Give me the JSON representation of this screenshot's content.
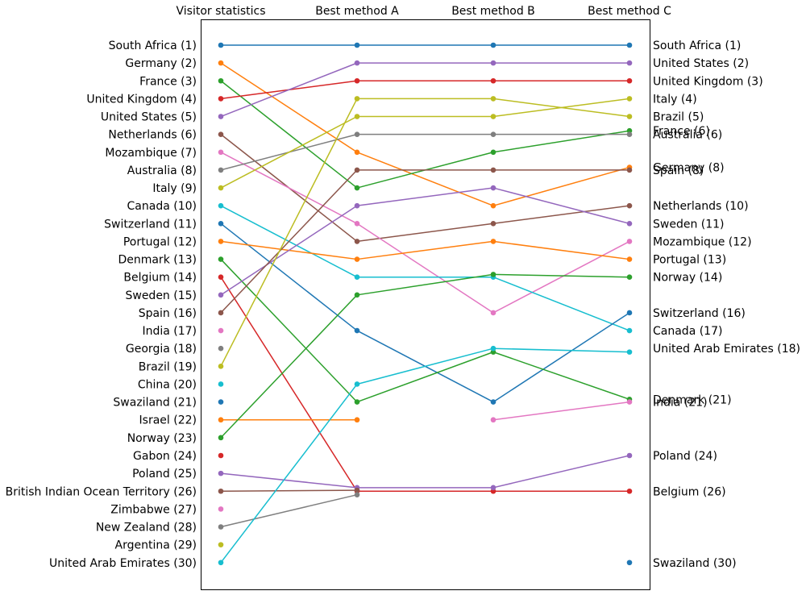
{
  "chart_data": {
    "type": "line",
    "categories": [
      "Visitor statistics",
      "Best method A",
      "Best method B",
      "Best method C"
    ],
    "ylim": [
      0.5,
      30.5
    ],
    "left_labels": [
      "South Africa (1)",
      "Germany (2)",
      "France (3)",
      "United Kingdom (4)",
      "United States (5)",
      "Netherlands (6)",
      "Mozambique (7)",
      "Australia (8)",
      "Italy (9)",
      "Canada (10)",
      "Switzerland (11)",
      "Portugal (12)",
      "Denmark (13)",
      "Belgium (14)",
      "Sweden (15)",
      "Spain (16)",
      "India (17)",
      "Georgia (18)",
      "Brazil (19)",
      "China (20)",
      "Swaziland (21)",
      "Israel (22)",
      "Norway (23)",
      "Gabon (24)",
      "Poland (25)",
      "British Indian Ocean Territory (26)",
      "Zimbabwe (27)",
      "New Zealand (28)",
      "Argentina (29)",
      "United Arab Emirates (30)"
    ],
    "right_labels": [
      {
        "text": "South Africa (1)",
        "y": 1
      },
      {
        "text": "United States (2)",
        "y": 2
      },
      {
        "text": "United Kingdom (3)",
        "y": 3
      },
      {
        "text": "Italy (4)",
        "y": 4
      },
      {
        "text": "Brazil (5)",
        "y": 5
      },
      {
        "text": "France (6)",
        "y": 5.8
      },
      {
        "text": "Australia (6)",
        "y": 6
      },
      {
        "text": "Germany (8)",
        "y": 7.85
      },
      {
        "text": "Spain (8)",
        "y": 8
      },
      {
        "text": "Netherlands (10)",
        "y": 10
      },
      {
        "text": "Sweden (11)",
        "y": 11
      },
      {
        "text": "Mozambique (12)",
        "y": 12
      },
      {
        "text": "Portugal (13)",
        "y": 13
      },
      {
        "text": "Norway (14)",
        "y": 14
      },
      {
        "text": "Switzerland (16)",
        "y": 16
      },
      {
        "text": "Canada (17)",
        "y": 17
      },
      {
        "text": "United Arab Emirates (18)",
        "y": 18
      },
      {
        "text": "Denmark (21)",
        "y": 20.85
      },
      {
        "text": "India (21)",
        "y": 21
      },
      {
        "text": "Poland (24)",
        "y": 24
      },
      {
        "text": "Belgium (26)",
        "y": 26
      },
      {
        "text": "Swaziland (30)",
        "y": 30
      }
    ],
    "series": [
      {
        "values": [
          1,
          1,
          1,
          1
        ],
        "color": "#1f77b4"
      },
      {
        "values": [
          2,
          7,
          10,
          7.85
        ],
        "color": "#ff7f0e"
      },
      {
        "values": [
          3,
          9,
          7,
          5.8
        ],
        "color": "#2ca02c"
      },
      {
        "values": [
          4,
          3,
          3,
          3
        ],
        "color": "#d62728"
      },
      {
        "values": [
          5,
          2,
          2,
          2
        ],
        "color": "#9467bd"
      },
      {
        "values": [
          6,
          12,
          11,
          10
        ],
        "color": "#8c564b"
      },
      {
        "values": [
          7,
          11,
          16,
          12
        ],
        "color": "#e377c2"
      },
      {
        "values": [
          8,
          6,
          6,
          6
        ],
        "color": "#7f7f7f"
      },
      {
        "values": [
          9,
          5,
          5,
          4
        ],
        "color": "#bcbd22"
      },
      {
        "values": [
          10,
          14,
          14,
          17
        ],
        "color": "#17becf"
      },
      {
        "values": [
          11,
          17,
          21,
          16
        ],
        "color": "#1f77b4"
      },
      {
        "values": [
          12,
          13,
          12,
          13
        ],
        "color": "#ff7f0e"
      },
      {
        "values": [
          13,
          21,
          18.2,
          20.85
        ],
        "color": "#2ca02c"
      },
      {
        "values": [
          14,
          26,
          26,
          26
        ],
        "color": "#d62728"
      },
      {
        "values": [
          15,
          10,
          9,
          11
        ],
        "color": "#9467bd"
      },
      {
        "values": [
          16,
          8,
          8,
          8
        ],
        "color": "#8c564b"
      },
      {
        "values": [
          17,
          null,
          22,
          21
        ],
        "color": "#e377c2"
      },
      {
        "values": [
          18,
          null,
          null,
          null
        ],
        "color": "#7f7f7f"
      },
      {
        "values": [
          19,
          4,
          4,
          5
        ],
        "color": "#bcbd22"
      },
      {
        "values": [
          20,
          null,
          null,
          null
        ],
        "color": "#17becf"
      },
      {
        "values": [
          21,
          null,
          null,
          30
        ],
        "color": "#1f77b4"
      },
      {
        "values": [
          22,
          22,
          null,
          null
        ],
        "color": "#ff7f0e"
      },
      {
        "values": [
          23,
          15,
          13.85,
          14
        ],
        "color": "#2ca02c"
      },
      {
        "values": [
          24,
          null,
          null,
          null
        ],
        "color": "#d62728"
      },
      {
        "values": [
          25,
          25.8,
          25.8,
          24
        ],
        "color": "#9467bd"
      },
      {
        "values": [
          26,
          25.95,
          null,
          null
        ],
        "color": "#8c564b"
      },
      {
        "values": [
          27,
          null,
          null,
          null
        ],
        "color": "#e377c2"
      },
      {
        "values": [
          28,
          26.2,
          null,
          null
        ],
        "color": "#7f7f7f"
      },
      {
        "values": [
          29,
          null,
          null,
          null
        ],
        "color": "#bcbd22"
      },
      {
        "values": [
          30,
          20,
          18,
          18.2
        ],
        "color": "#17becf"
      }
    ]
  }
}
